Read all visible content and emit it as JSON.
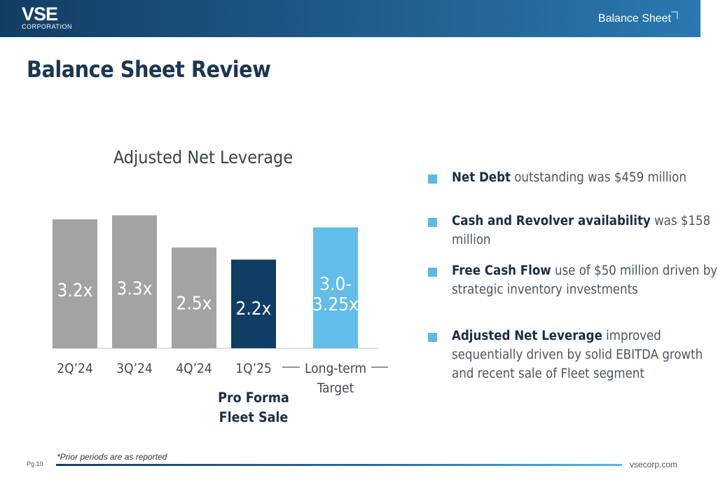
{
  "header": {
    "logo_text": "VSE",
    "logo_sub": "CORPORATION",
    "section_label": "Balance Sheet"
  },
  "page_title": "Balance Sheet Review",
  "chart_data": {
    "type": "bar",
    "title": "Adjusted Net Leverage",
    "categories": [
      "2Q’24",
      "3Q’24",
      "4Q’24",
      "1Q’25",
      "Long-term\nTarget"
    ],
    "values": [
      3.2,
      3.3,
      2.5,
      2.2,
      3.0
    ],
    "value_labels": [
      "3.2x",
      "3.3x",
      "2.5x",
      "2.2x",
      "3.0-\n3.25x"
    ],
    "colors": [
      "#a3a3a3",
      "#a3a3a3",
      "#a3a3a3",
      "#0f3d63",
      "#63bde9"
    ],
    "annotation": "Pro Forma\nFleet Sale",
    "xlabel": "",
    "ylabel": "",
    "grid": false
  },
  "bullets": [
    {
      "bold": "Net Debt",
      "text": " outstanding was $459 million"
    },
    {
      "bold": "Cash and Revolver availability",
      "text": " was $158 million"
    },
    {
      "bold": "Free Cash Flow",
      "text": " use of $50 million driven by strategic inventory investments"
    },
    {
      "bold": "Adjusted Net Leverage",
      "text": " improved sequentially driven by solid EBITDA growth and recent sale of Fleet segment"
    }
  ],
  "footer": {
    "footnote": "*Prior periods are as reported",
    "page_num": "Pg.10",
    "website": "vsecorp.com"
  },
  "colors": {
    "accent": "#5cb8e6",
    "navy": "#0f3d63",
    "title": "#1b3652"
  }
}
